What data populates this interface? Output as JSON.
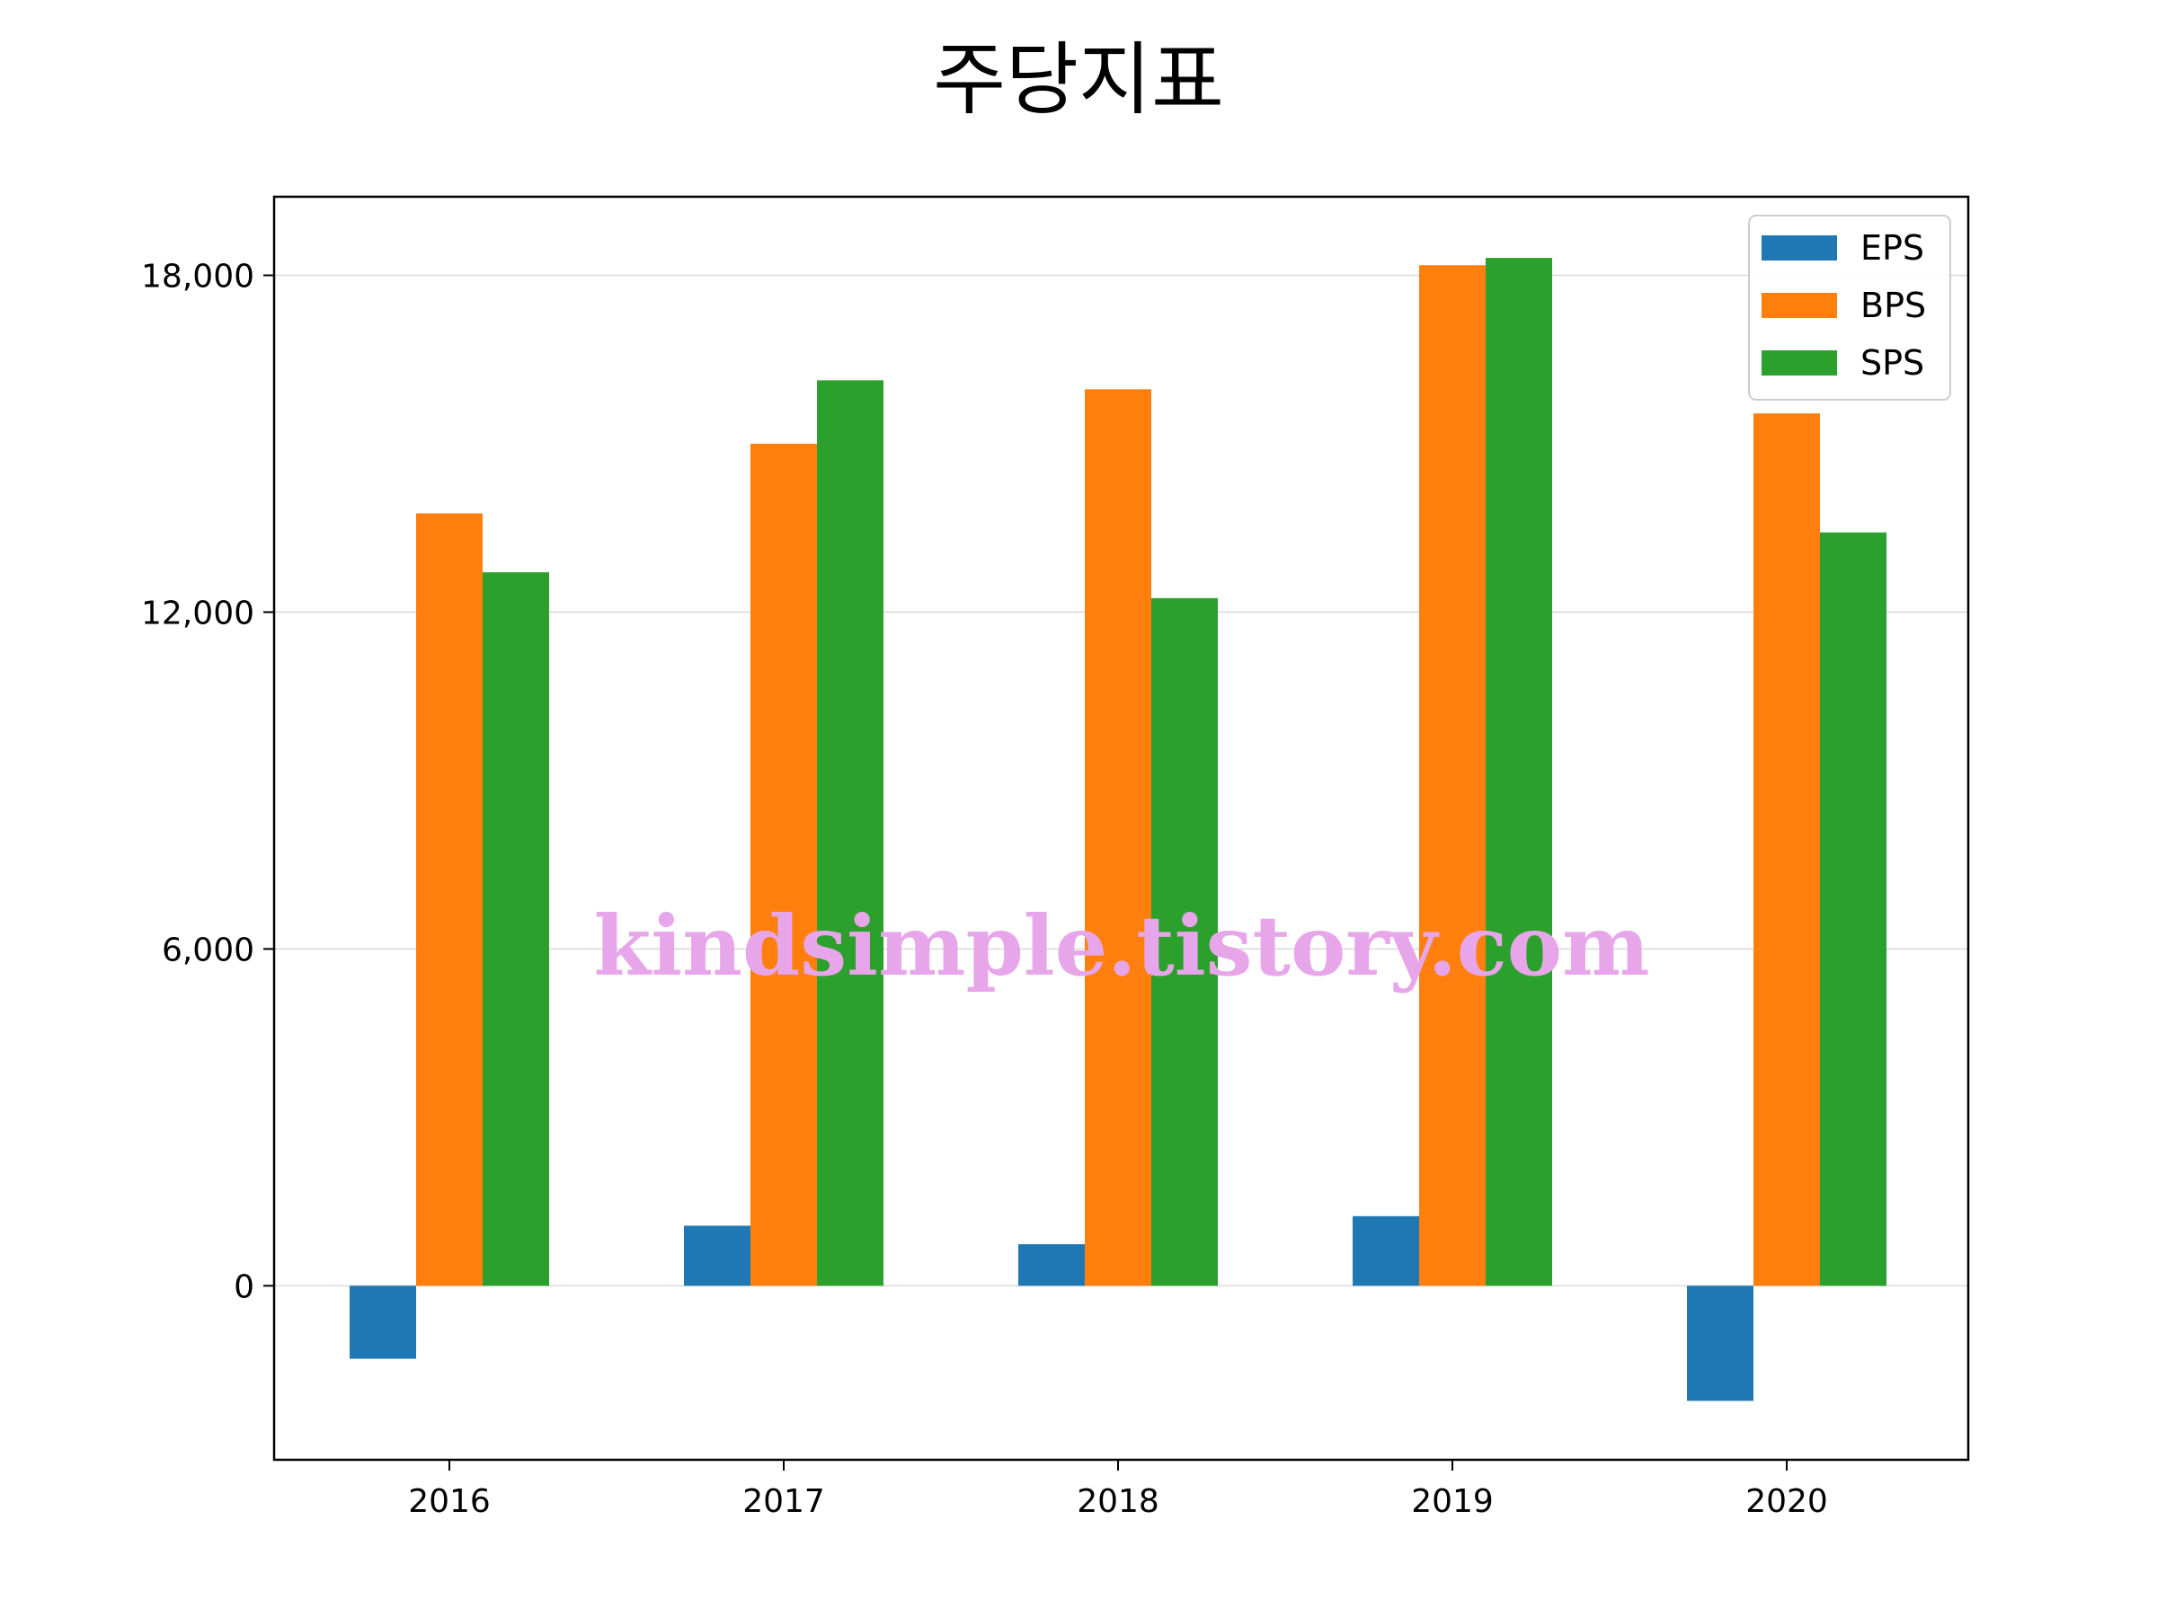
{
  "chart_data": {
    "type": "bar",
    "title": "주당지표",
    "xlabel": "",
    "ylabel": "",
    "categories": [
      "2016",
      "2017",
      "2018",
      "2019",
      "2020"
    ],
    "series": [
      {
        "name": "EPS",
        "color": "#1f77b4",
        "values": [
          -1300,
          1070,
          740,
          1240,
          -2050
        ]
      },
      {
        "name": "BPS",
        "color": "#ff7f0e",
        "values": [
          13760,
          15000,
          15970,
          18180,
          15540
        ]
      },
      {
        "name": "SPS",
        "color": "#2ca02c",
        "values": [
          12710,
          16130,
          12250,
          18310,
          13420
        ]
      }
    ],
    "ylim": [
      -3100,
      19400
    ],
    "yticks": [
      0,
      6000,
      12000,
      18000
    ],
    "ytick_labels": [
      "0",
      "6,000",
      "12,000",
      "18,000"
    ],
    "grid": "horizontal",
    "legend_position": "top-right"
  },
  "watermark": {
    "text": "kindsimple.tistory.com",
    "color": "#e8a6ea"
  }
}
